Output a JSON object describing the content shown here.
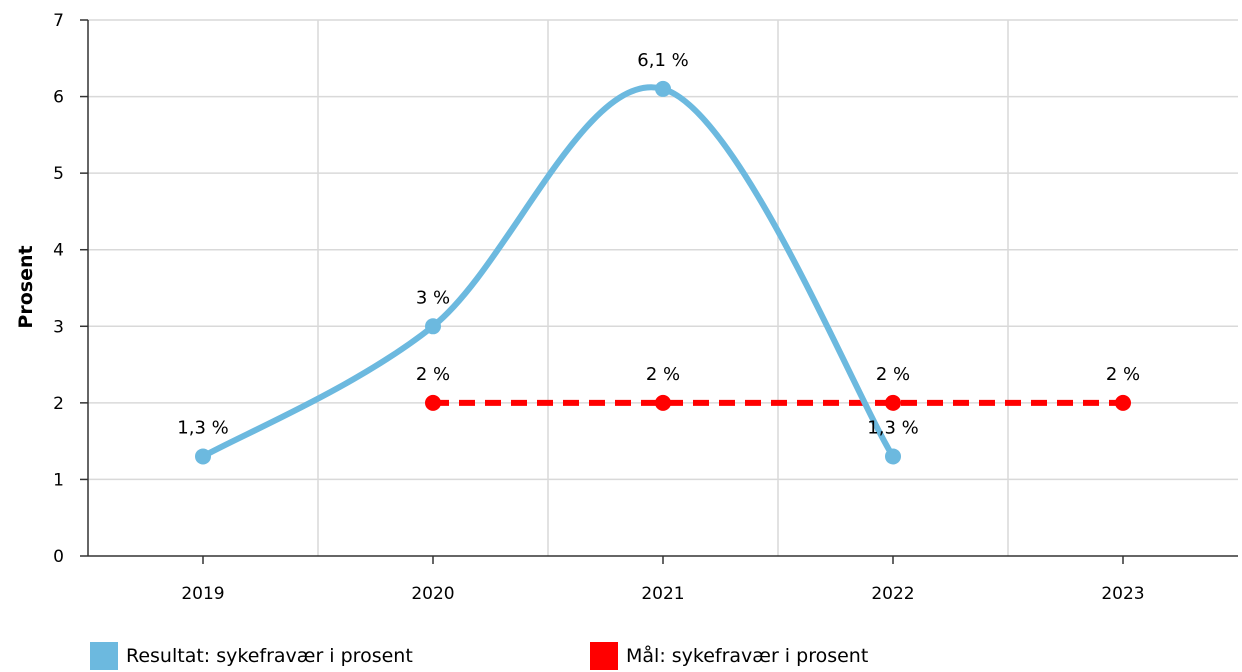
{
  "chart_data": {
    "type": "line",
    "categories": [
      "2019",
      "2020",
      "2021",
      "2022",
      "2023"
    ],
    "ylabel": "Prosent",
    "ylim": [
      0,
      7
    ],
    "yticks": [
      0,
      1,
      2,
      3,
      4,
      5,
      6,
      7
    ],
    "grid": true,
    "legend_position": "bottom",
    "series": [
      {
        "name": "Resultat: sykefravær i prosent",
        "color": "#6cb9df",
        "style": "smooth-solid",
        "values": [
          1.3,
          3,
          6.1,
          1.3,
          null
        ],
        "labels": [
          "1,3 %",
          "3 %",
          "6,1 %",
          "1,3 %",
          ""
        ]
      },
      {
        "name": "Mål: sykefravær i prosent",
        "color": "#ff0000",
        "style": "dashed",
        "values": [
          null,
          2,
          2,
          2,
          2
        ],
        "labels": [
          "",
          "2 %",
          "2 %",
          "2 %",
          "2 %"
        ]
      }
    ]
  }
}
